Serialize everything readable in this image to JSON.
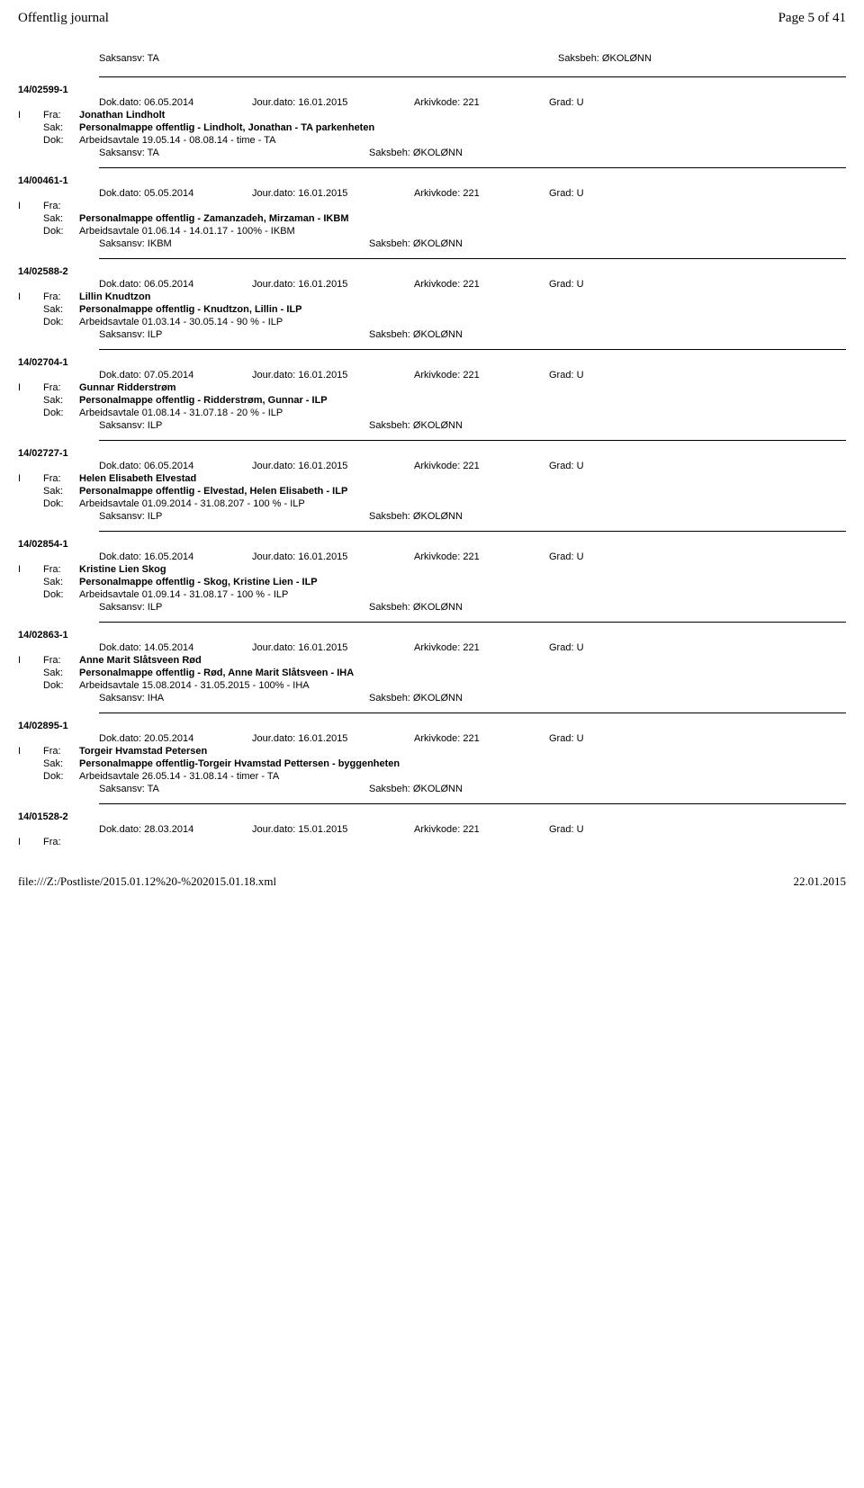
{
  "header": {
    "left": "Offentlig journal",
    "right": "Page 5 of 41"
  },
  "topline": {
    "saksansv": "Saksansv: TA",
    "saksbeh": "Saksbeh: ØKOLØNN"
  },
  "labels": {
    "dok_dato": "Dok.dato:",
    "jour_dato": "Jour.dato:",
    "arkivkode": "Arkivkode:",
    "grad": "Grad:",
    "i": "I",
    "fra": "Fra:",
    "sak": "Sak:",
    "dok": "Dok:",
    "saksansv": "Saksansv:",
    "saksbeh": "Saksbeh:"
  },
  "entries": [
    {
      "id": "14/02599-1",
      "dok_dato": "06.05.2014",
      "jour_dato": "16.01.2015",
      "arkivkode": "221",
      "grad": "U",
      "fra": "Jonathan Lindholt",
      "sak": "Personalmappe offentlig - Lindholt, Jonathan - TA parkenheten",
      "dok": "Arbeidsavtale 19.05.14 - 08.08.14 - time - TA",
      "saksansv": "TA",
      "saksbeh": "ØKOLØNN"
    },
    {
      "id": "14/00461-1",
      "dok_dato": "05.05.2014",
      "jour_dato": "16.01.2015",
      "arkivkode": "221",
      "grad": "U",
      "fra": "",
      "sak": "Personalmappe offentlig - Zamanzadeh, Mirzaman - IKBM",
      "dok": "Arbeidsavtale 01.06.14 - 14.01.17 - 100% - IKBM",
      "saksansv": "IKBM",
      "saksbeh": "ØKOLØNN"
    },
    {
      "id": "14/02588-2",
      "dok_dato": "06.05.2014",
      "jour_dato": "16.01.2015",
      "arkivkode": "221",
      "grad": "U",
      "fra": "Lillin Knudtzon",
      "sak": "Personalmappe offentlig - Knudtzon, Lillin - ILP",
      "dok": "Arbeidsavtale 01.03.14 - 30.05.14 - 90 % - ILP",
      "saksansv": "ILP",
      "saksbeh": "ØKOLØNN"
    },
    {
      "id": "14/02704-1",
      "dok_dato": "07.05.2014",
      "jour_dato": "16.01.2015",
      "arkivkode": "221",
      "grad": "U",
      "fra": "Gunnar Ridderstrøm",
      "sak": "Personalmappe offentlig - Ridderstrøm, Gunnar - ILP",
      "dok": "Arbeidsavtale 01.08.14 - 31.07.18 - 20 % - ILP",
      "saksansv": "ILP",
      "saksbeh": "ØKOLØNN"
    },
    {
      "id": "14/02727-1",
      "dok_dato": "06.05.2014",
      "jour_dato": "16.01.2015",
      "arkivkode": "221",
      "grad": "U",
      "fra": "Helen Elisabeth Elvestad",
      "sak": "Personalmappe offentlig - Elvestad, Helen Elisabeth - ILP",
      "dok": "Arbeidsavtale 01.09.2014 - 31.08.207 - 100 % - ILP",
      "saksansv": "ILP",
      "saksbeh": "ØKOLØNN"
    },
    {
      "id": "14/02854-1",
      "dok_dato": "16.05.2014",
      "jour_dato": "16.01.2015",
      "arkivkode": "221",
      "grad": "U",
      "fra": "Kristine Lien Skog",
      "sak": "Personalmappe offentlig - Skog, Kristine Lien - ILP",
      "dok": "Arbeidsavtale 01.09.14 - 31.08.17 - 100 % - ILP",
      "saksansv": "ILP",
      "saksbeh": "ØKOLØNN"
    },
    {
      "id": "14/02863-1",
      "dok_dato": "14.05.2014",
      "jour_dato": "16.01.2015",
      "arkivkode": "221",
      "grad": "U",
      "fra": "Anne Marit Slåtsveen Rød",
      "sak": "Personalmappe offentlig - Rød, Anne Marit Slåtsveen - IHA",
      "dok": "Arbeidsavtale 15.08.2014 - 31.05.2015 - 100% - IHA",
      "saksansv": "IHA",
      "saksbeh": "ØKOLØNN"
    },
    {
      "id": "14/02895-1",
      "dok_dato": "20.05.2014",
      "jour_dato": "16.01.2015",
      "arkivkode": "221",
      "grad": "U",
      "fra": "Torgeir Hvamstad Petersen",
      "sak": "Personalmappe offentlig-Torgeir Hvamstad Pettersen - byggenheten",
      "dok": "Arbeidsavtale 26.05.14 - 31.08.14 - timer - TA",
      "saksansv": "TA",
      "saksbeh": "ØKOLØNN"
    },
    {
      "id": "14/01528-2",
      "dok_dato": "28.03.2014",
      "jour_dato": "15.01.2015",
      "arkivkode": "221",
      "grad": "U",
      "fra": "",
      "partial": true
    }
  ],
  "footer": {
    "left": "file:///Z:/Postliste/2015.01.12%20-%202015.01.18.xml",
    "right": "22.01.2015"
  }
}
